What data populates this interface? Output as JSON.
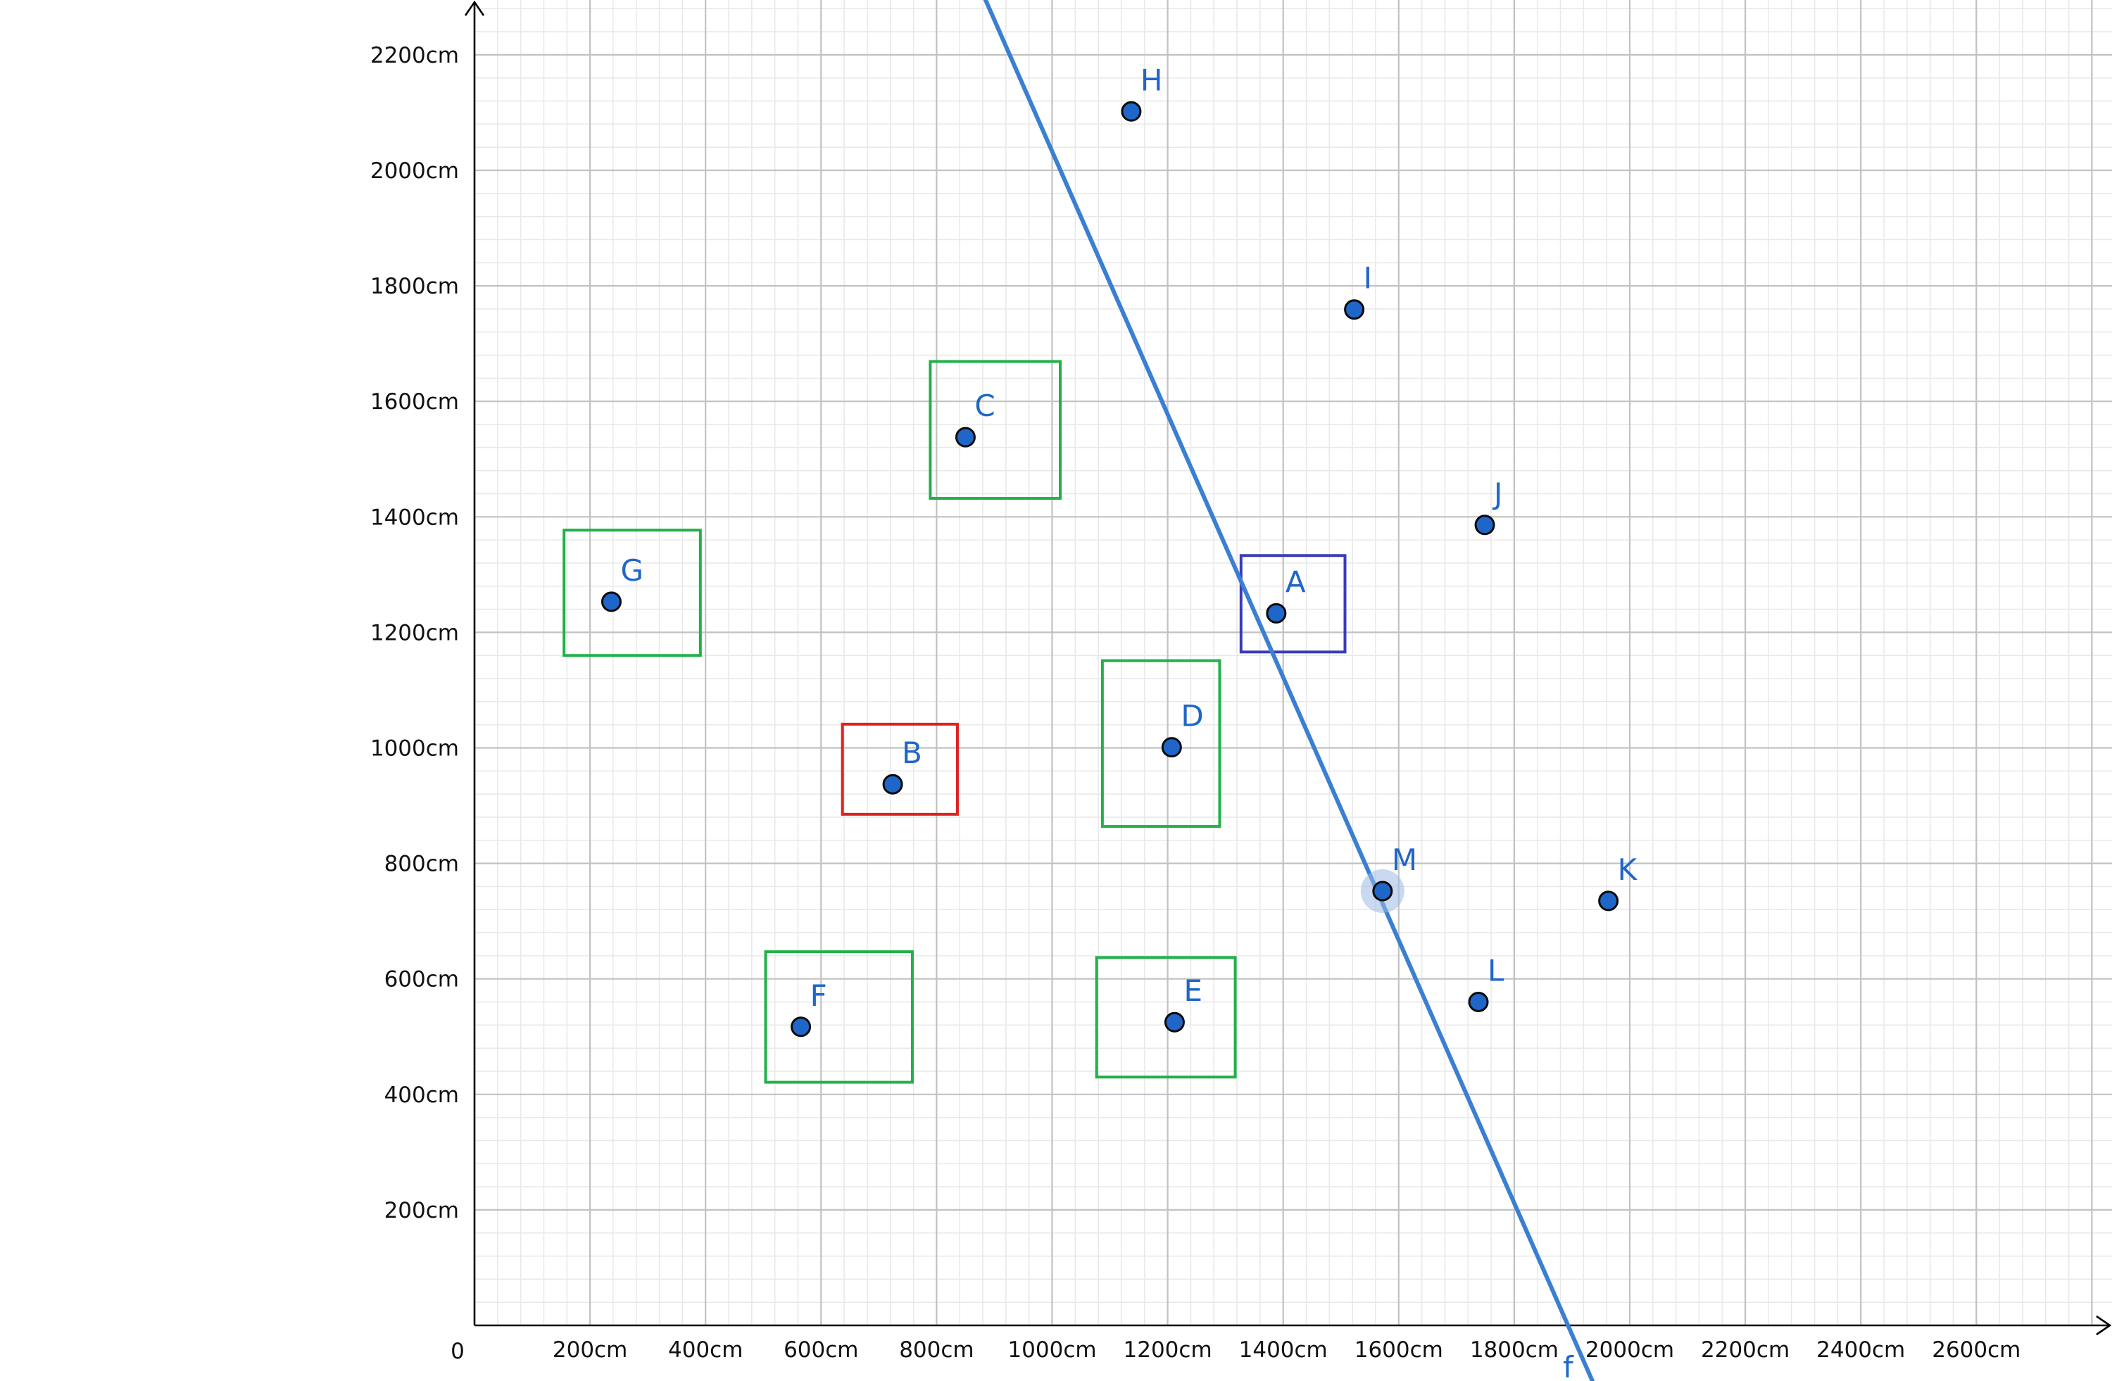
{
  "chart_data": {
    "type": "scatter",
    "title": "",
    "xlabel": "",
    "ylabel": "",
    "origin_label": "0",
    "unit": "cm",
    "grid": true,
    "xlim": [
      0,
      2800
    ],
    "ylim": [
      0,
      2300
    ],
    "x_ticks": [
      200,
      400,
      600,
      800,
      1000,
      1200,
      1400,
      1600,
      1800,
      2000,
      2200,
      2400,
      2600
    ],
    "y_ticks": [
      200,
      400,
      600,
      800,
      1000,
      1200,
      1400,
      1600,
      1800,
      2000,
      2200
    ],
    "x_tick_labels": [
      "200cm",
      "400cm",
      "600cm",
      "800cm",
      "1000cm",
      "1200cm",
      "1400cm",
      "1600cm",
      "1800cm",
      "2000cm",
      "2200cm",
      "2400cm",
      "2600cm"
    ],
    "y_tick_labels": [
      "200cm",
      "400cm",
      "600cm",
      "800cm",
      "1000cm",
      "1200cm",
      "1400cm",
      "1600cm",
      "1800cm",
      "2000cm",
      "2200cm"
    ],
    "points": [
      {
        "label": "A",
        "x": 1388,
        "y": 1233
      },
      {
        "label": "B",
        "x": 724,
        "y": 937
      },
      {
        "label": "C",
        "x": 850,
        "y": 1538
      },
      {
        "label": "D",
        "x": 1207,
        "y": 1001
      },
      {
        "label": "E",
        "x": 1212,
        "y": 525
      },
      {
        "label": "F",
        "x": 565,
        "y": 517
      },
      {
        "label": "G",
        "x": 237,
        "y": 1253
      },
      {
        "label": "H",
        "x": 1137,
        "y": 2102
      },
      {
        "label": "I",
        "x": 1523,
        "y": 1759
      },
      {
        "label": "J",
        "x": 1749,
        "y": 1386
      },
      {
        "label": "K",
        "x": 1963,
        "y": 735
      },
      {
        "label": "L",
        "x": 1738,
        "y": 560
      },
      {
        "label": "M",
        "x": 1572,
        "y": 752,
        "highlighted": true
      }
    ],
    "rectangles": [
      {
        "x1": 1327,
        "y1": 1166,
        "x2": 1507,
        "y2": 1333,
        "color": "#3b3bb8"
      },
      {
        "x1": 637,
        "y1": 885,
        "x2": 836,
        "y2": 1041,
        "color": "#e02020"
      },
      {
        "x1": 789,
        "y1": 1432,
        "x2": 1014,
        "y2": 1669,
        "color": "#22b04a"
      },
      {
        "x1": 1087,
        "y1": 864,
        "x2": 1290,
        "y2": 1151,
        "color": "#22b04a"
      },
      {
        "x1": 1077,
        "y1": 430,
        "x2": 1317,
        "y2": 637,
        "color": "#22b04a"
      },
      {
        "x1": 504,
        "y1": 421,
        "x2": 758,
        "y2": 647,
        "color": "#22b04a"
      },
      {
        "x1": 155,
        "y1": 1160,
        "x2": 391,
        "y2": 1377,
        "color": "#22b04a"
      }
    ],
    "lines": [
      {
        "label": "f",
        "x1": 876,
        "y1": 2315,
        "x2": 1937,
        "y2": -100,
        "color": "#3a7fd2"
      }
    ],
    "colors": {
      "point_fill": "#1f66c9",
      "point_stroke": "#0a0a0a",
      "label": "#1f66c9",
      "grid_major": "#c2c2c2",
      "grid_minor": "#e9e9e9",
      "axis": "#000000",
      "highlight_halo": "#9db9e4"
    }
  }
}
